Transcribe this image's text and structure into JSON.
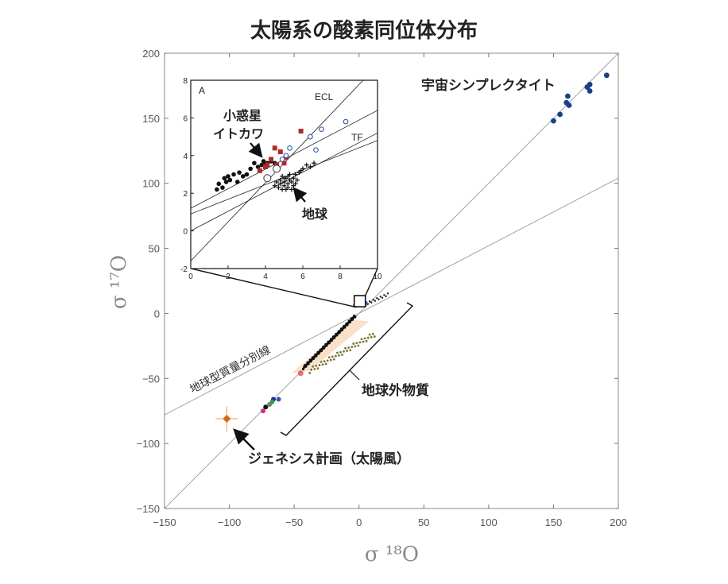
{
  "chart_data": {
    "type": "scatter",
    "title": "太陽系の酸素同位体分布",
    "xlabel": "σ ¹⁸O",
    "ylabel": "σ ¹⁷O",
    "xlim": [
      -150,
      200
    ],
    "ylim": [
      -150,
      200
    ],
    "xticks": [
      -150,
      -100,
      -50,
      0,
      50,
      100,
      150,
      200
    ],
    "yticks": [
      -150,
      -100,
      -50,
      0,
      50,
      100,
      150,
      200
    ],
    "xtick_labels": [
      "−150",
      "−100",
      "−50",
      "0",
      "50",
      "100",
      "150",
      "200"
    ],
    "ytick_labels": [
      "−150",
      "−100",
      "−50",
      "0",
      "50",
      "100",
      "150",
      "200"
    ],
    "grid": false,
    "lines": [
      {
        "label": "",
        "slope": 1.0,
        "intercept": 0
      },
      {
        "label": "地球型質量分別線",
        "slope": 0.52,
        "intercept": 0
      }
    ],
    "annotations": [
      "宇宙シンプレクタイト",
      "地球外物質",
      "ジェネシス計画（太陽風）",
      "地球型質量分別線"
    ],
    "series": [
      {
        "marker": "dot-dark-blue",
        "x": [
          150,
          155,
          160,
          161,
          162,
          176,
          178,
          178,
          191
        ],
        "y": [
          148,
          153,
          162,
          167,
          160,
          174,
          176,
          171,
          183
        ]
      },
      {
        "marker": "genesis-diamond-orange",
        "x": [
          -102
        ],
        "y": [
          -81
        ]
      }
    ],
    "inset": {
      "panel_label": "A",
      "xlim": [
        0,
        10
      ],
      "ylim": [
        -2,
        8
      ],
      "xticks": [
        0,
        2,
        4,
        6,
        8,
        10
      ],
      "yticks": [
        -2,
        0,
        2,
        4,
        6,
        8
      ],
      "xtick_labels": [
        "0",
        "2",
        "4",
        "6",
        "8",
        "10"
      ],
      "ytick_labels": [
        "-2",
        "0",
        "2",
        "4",
        "6",
        "8"
      ],
      "lines": [
        {
          "label": "ECL",
          "x": [
            0,
            10
          ],
          "y": [
            -1.6,
            8.8
          ]
        },
        {
          "label": "TF",
          "x": [
            0,
            10
          ],
          "y": [
            0,
            5.2
          ]
        },
        {
          "label": "",
          "x": [
            0,
            10
          ],
          "y": [
            1.2,
            6.4
          ]
        },
        {
          "label": "",
          "x": [
            0,
            10
          ],
          "y": [
            0.9,
            4.8
          ]
        }
      ],
      "annotations": [
        "小惑星",
        "イトカワ",
        "地球"
      ],
      "series": [
        {
          "marker": "filled-circle-black",
          "x": [
            1.4,
            1.5,
            1.7,
            1.8,
            1.9,
            2.0,
            2.1,
            2.3,
            2.5,
            2.6,
            2.8,
            3.0,
            3.2,
            3.4,
            3.6,
            3.8,
            3.9,
            4.0,
            4.1,
            4.3,
            4.5
          ],
          "y": [
            2.2,
            2.5,
            2.3,
            2.8,
            2.6,
            2.9,
            2.7,
            3.0,
            2.6,
            3.1,
            2.9,
            3.0,
            3.3,
            3.6,
            3.4,
            3.5,
            3.7,
            3.5,
            3.6,
            3.7,
            3.6
          ]
        },
        {
          "marker": "filled-square-red",
          "x": [
            3.7,
            4.0,
            4.1,
            4.3,
            4.5,
            4.6,
            4.8,
            5.0,
            5.1,
            5.9
          ],
          "y": [
            3.2,
            3.4,
            3.5,
            3.8,
            4.4,
            3.5,
            4.2,
            3.6,
            3.9,
            5.3
          ]
        },
        {
          "marker": "open-circle-blue",
          "x": [
            4.9,
            5.1,
            5.3,
            6.4,
            6.7,
            7.0,
            8.3
          ],
          "y": [
            3.8,
            4.0,
            4.4,
            5.0,
            4.3,
            5.4,
            5.8
          ]
        },
        {
          "marker": "open-circle-black",
          "x": [
            4.1,
            4.6
          ],
          "y": [
            2.8,
            3.3
          ]
        },
        {
          "marker": "cross-black",
          "x": [
            4.5,
            4.6,
            4.7,
            4.8,
            4.8,
            4.9,
            5.0,
            5.0,
            5.1,
            5.1,
            5.2,
            5.2,
            5.3,
            5.3,
            5.4,
            5.5,
            5.5,
            5.6,
            5.7,
            5.8,
            5.9,
            6.0,
            6.2,
            6.4,
            6.6,
            4.9,
            5.2,
            5.4,
            5.6,
            5.0
          ],
          "y": [
            2.4,
            2.6,
            2.3,
            2.7,
            2.5,
            2.9,
            2.6,
            2.4,
            2.8,
            2.2,
            2.5,
            2.9,
            2.7,
            3.0,
            2.6,
            2.8,
            2.4,
            3.0,
            2.7,
            3.1,
            3.2,
            3.3,
            3.5,
            3.4,
            3.6,
            2.2,
            2.3,
            2.2,
            2.5,
            2.8
          ],
          "point_labels": []
        }
      ]
    }
  }
}
